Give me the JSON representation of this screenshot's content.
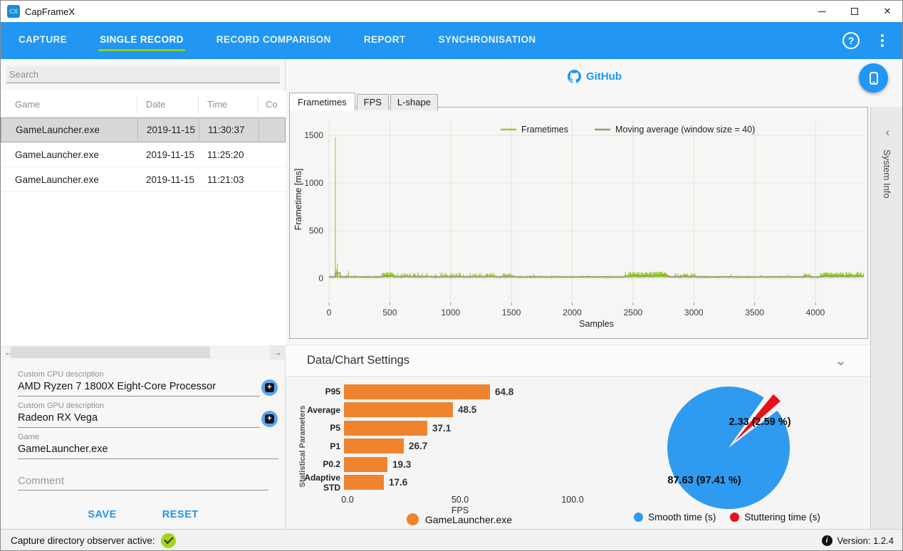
{
  "window": {
    "title": "CapFrameX"
  },
  "icons": {
    "close": "✕",
    "help": "?",
    "back": "←",
    "forward": "→",
    "chevron_down": "⌄",
    "panel_chevron": "‹",
    "plus": "+",
    "info": "i"
  },
  "colors": {
    "accent_blue": "#2196F3",
    "active_tab_underline": "#94CE10",
    "frametimes_green": "#9ACD32",
    "moving_average_gray": "#9A937B",
    "bar_orange": "#F0832D",
    "pie_blue": "#2E9BF0",
    "pie_red": "#E8101C",
    "check_green": "#A4D41A"
  },
  "navbar": {
    "items": [
      {
        "label": "CAPTURE",
        "active": false
      },
      {
        "label": "SINGLE RECORD",
        "active": true
      },
      {
        "label": "RECORD COMPARISON",
        "active": false
      },
      {
        "label": "REPORT",
        "active": false
      },
      {
        "label": "SYNCHRONISATION",
        "active": false
      }
    ]
  },
  "left_panel": {
    "search_placeholder": "Search",
    "table": {
      "columns": [
        "Game",
        "Date",
        "Time",
        "Co"
      ],
      "rows": [
        {
          "game": "GameLauncher.exe",
          "date": "2019-11-15",
          "time": "11:30:37",
          "selected": true
        },
        {
          "game": "GameLauncher.exe",
          "date": "2019-11-15",
          "time": "11:25:20",
          "selected": false
        },
        {
          "game": "GameLauncher.exe",
          "date": "2019-11-15",
          "time": "11:21:03",
          "selected": false
        }
      ]
    },
    "form": {
      "cpu_label": "Custom CPU description",
      "cpu_value": "AMD Ryzen 7 1800X Eight-Core Processor",
      "gpu_label": "Custom GPU description",
      "gpu_value": "Radeon RX Vega",
      "game_label": "Game",
      "game_value": "GameLauncher.exe",
      "comment_placeholder": "Comment",
      "save_label": "SAVE",
      "reset_label": "RESET"
    }
  },
  "center": {
    "github_label": "GitHub",
    "tabs": [
      "Frametimes",
      "FPS",
      "L-shape"
    ],
    "active_tab": "Frametimes",
    "settings_header": "Data/Chart Settings"
  },
  "system_info_label": "System Info",
  "statusbar": {
    "observer_text": "Capture directory observer active:",
    "version_text": "Version: 1.2.4"
  },
  "chart_data": [
    {
      "type": "line",
      "id": "frametimes-chart",
      "xlabel": "Samples",
      "ylabel": "Frametime [ms]",
      "xlim": [
        0,
        4400
      ],
      "ylim": [
        -150,
        1650
      ],
      "xticks": [
        0,
        500,
        1000,
        1500,
        2000,
        2500,
        3000,
        3500,
        4000
      ],
      "yticks": [
        0,
        500,
        1000,
        1500
      ],
      "grid": true,
      "legend_position": "top-center",
      "legend": [
        {
          "name": "Frametimes",
          "color": "#9ACD32"
        },
        {
          "name": "Moving average (window size = 40)",
          "color": "#9A937B"
        }
      ],
      "samples_count": 4398,
      "baseline_ms": {
        "min": 11,
        "max": 19
      },
      "major_spikes": [
        {
          "x": 52,
          "y": 1480
        },
        {
          "x": 60,
          "y": 95
        },
        {
          "x": 68,
          "y": 150
        },
        {
          "x": 75,
          "y": 60
        },
        {
          "x": 160,
          "y": 78
        }
      ],
      "spike_clusters": [
        [
          430,
          530,
          0.35,
          40
        ],
        [
          560,
          1120,
          0.12,
          35
        ],
        [
          1150,
          1360,
          0.18,
          30
        ],
        [
          1430,
          1530,
          0.25,
          30
        ],
        [
          1640,
          1700,
          0.15,
          25
        ],
        [
          2430,
          2780,
          0.4,
          45
        ],
        [
          2840,
          3010,
          0.2,
          30
        ],
        [
          3890,
          3960,
          0.2,
          30
        ],
        [
          4040,
          4398,
          0.3,
          40
        ]
      ],
      "moving_average_window": 40
    },
    {
      "type": "bar",
      "id": "fps-statistics-chart",
      "categories": [
        "P95",
        "Average",
        "P5",
        "P1",
        "P0.2",
        "Adaptive STD"
      ],
      "values": [
        64.8,
        48.5,
        37.1,
        26.7,
        19.3,
        17.6
      ],
      "xlabel": "FPS",
      "ylabel": "Statistical Parameters",
      "xticks": [
        0.0,
        50.0,
        100.0
      ],
      "xlim": [
        0,
        100
      ],
      "bar_color": "#F0832D",
      "legend": [
        {
          "name": "GameLauncher.exe",
          "color": "#F0832D"
        }
      ],
      "legend_position": "bottom"
    },
    {
      "type": "pie",
      "id": "stutter-time-chart",
      "slices": [
        {
          "name": "Smooth time (s)",
          "value": 87.63,
          "pct": 97.41,
          "label": "87.63 (97.41 %)",
          "color": "#2E9BF0"
        },
        {
          "name": "Stuttering time (s)",
          "value": 2.33,
          "pct": 2.59,
          "label": "2.33 (2.59 %)",
          "color": "#E8101C",
          "exploded": true
        }
      ],
      "legend_position": "bottom"
    }
  ]
}
